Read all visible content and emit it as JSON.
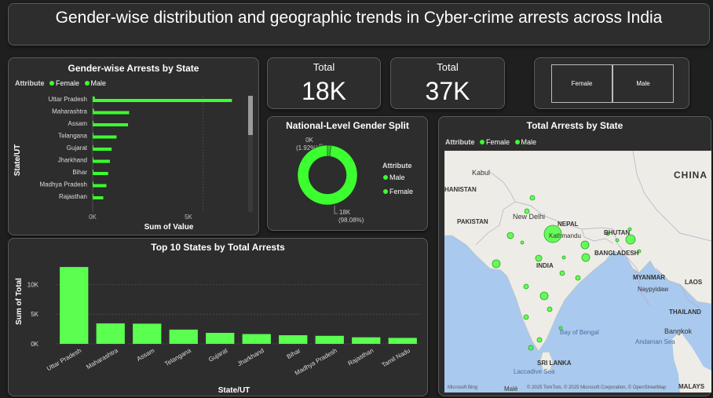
{
  "header": {
    "title": "Gender-wise distribution and geographic trends in Cyber-crime arrests across India"
  },
  "colors": {
    "accent": "#3bff2e",
    "bar": "#5bff4f",
    "panel": "#2d2d2d",
    "background": "#1f1f1f"
  },
  "cards": [
    {
      "label": "Total",
      "value": "18K"
    },
    {
      "label": "Total",
      "value": "37K"
    }
  ],
  "slicer": {
    "options": [
      "Female",
      "Male"
    ]
  },
  "gender_by_state": {
    "title": "Gender-wise Arrests by State",
    "legend_title": "Attribute",
    "legend_items": [
      "Female",
      "Male"
    ],
    "xlabel": "Sum of Value",
    "ylabel": "State/UT",
    "x_ticks": [
      "0K",
      "5K"
    ]
  },
  "gender_split": {
    "title": "National-Level Gender Split",
    "legend_title": "Attribute",
    "legend_items": [
      "Male",
      "Female"
    ],
    "label_small_value": "0K",
    "label_small_pct": "(1.92%)",
    "label_large_value": "18K",
    "label_large_pct": "(98.08%)"
  },
  "map": {
    "title": "Total Arrests by State",
    "legend_title": "Attribute",
    "legend_items": [
      "Female",
      "Male"
    ],
    "labels": {
      "kabul": "Kabul",
      "afghanistan": "HANISTAN",
      "pakistan": "PAKISTAN",
      "new_delhi": "New Delhi",
      "nepal": "NEPAL",
      "kathmandu": "Kathmandu",
      "bhutan": "BHUTAN",
      "bangladesh": "BANGLADESH",
      "india": "INDIA",
      "myanmar": "MYANMAR",
      "naypyidaw": "Naypyidaw",
      "laos": "LAOS",
      "china": "CHINA",
      "thailand": "THAILAND",
      "bangkok": "Bangkok",
      "bay_of_bengal": "Bay of Bengal",
      "sri_lanka": "SRI LANKA",
      "andaman_sea": "Andaman Sea",
      "laccadive_sea": "Laccadive Sea",
      "male": "Malé",
      "malaysia": "MALAYS",
      "attribution": "© 2025 TomTom, © 2025 Microsoft Corporation, © OpenStreetMap",
      "bing": "Microsoft Bing"
    }
  },
  "chart_data": [
    {
      "type": "bar",
      "orientation": "horizontal",
      "title": "Gender-wise Arrests by State",
      "xlabel": "Sum of Value",
      "ylabel": "State/UT",
      "categories": [
        "Uttar Pradesh",
        "Maharashtra",
        "Assam",
        "Telangana",
        "Gujarat",
        "Jharkhand",
        "Bihar",
        "Madhya Pradesh",
        "Rajasthan"
      ],
      "series": [
        {
          "name": "Female",
          "values": [
            100,
            60,
            40,
            20,
            10,
            10,
            10,
            15,
            5
          ]
        },
        {
          "name": "Male",
          "values": [
            6300,
            1650,
            1600,
            1080,
            860,
            780,
            700,
            620,
            480
          ]
        }
      ],
      "xlim": [
        0,
        6500
      ],
      "legend": "top-left"
    },
    {
      "type": "pie",
      "title": "National-Level Gender Split",
      "categories": [
        "Male",
        "Female"
      ],
      "values": [
        18000,
        350
      ],
      "percentages": [
        98.08,
        1.92
      ],
      "donut": true
    },
    {
      "type": "bar",
      "title": "Top 10 States by Total Arrests",
      "xlabel": "State/UT",
      "ylabel": "Sum of Total",
      "categories": [
        "Uttar Pradesh",
        "Maharashtra",
        "Assam",
        "Telangana",
        "Gujarat",
        "Jharkhand",
        "Bihar",
        "Madhya Pradesh",
        "Rajasthan",
        "Tamil Nadu"
      ],
      "values": [
        12950,
        3450,
        3400,
        2400,
        1850,
        1650,
        1450,
        1350,
        1100,
        1000
      ],
      "ylim": [
        0,
        13500
      ],
      "y_ticks": [
        0,
        5000,
        10000
      ],
      "y_tick_labels": [
        "0K",
        "5K",
        "10K"
      ],
      "grid": true
    }
  ]
}
